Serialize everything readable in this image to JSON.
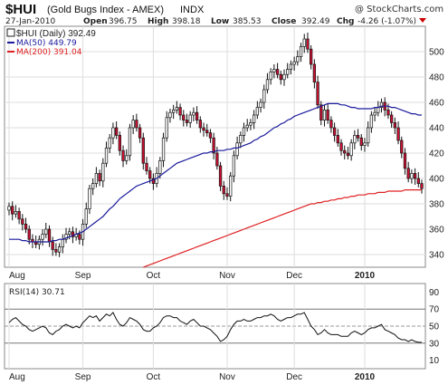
{
  "header": {
    "symbol": "$HUI",
    "name": "(Gold Bugs Index - AMEX)",
    "exchange": "INDX",
    "watermark": "@ StockCharts.com",
    "date": "27-Jan-2010",
    "open_label": "Open",
    "open": "396.75",
    "high_label": "High",
    "high": "398.18",
    "low_label": "Low",
    "low": "385.53",
    "close_label": "Close",
    "close": "392.49",
    "chg_label": "Chg",
    "chg": "-4.26 (-1.07%)",
    "chg_color": "#cc0000"
  },
  "legend": {
    "price": "$HUI (Daily) 392.49",
    "ma50": "MA(50) 449.79",
    "ma200": "MA(200) 391.04",
    "rsi": "RSI(14) 30.71"
  },
  "colors": {
    "ma50": "#1a1a9c",
    "ma200": "#e02020",
    "down_candle": "#cc1133",
    "up_candle": "#ffffff",
    "rsi": "#111111"
  },
  "chart_data": [
    {
      "type": "candlestick",
      "ylim": [
        330,
        520
      ],
      "yticks": [
        "340",
        "360",
        "380",
        "400",
        "420",
        "440",
        "460",
        "480",
        "500"
      ],
      "xticks": [
        "Aug",
        "Sep",
        "Oct",
        "Nov",
        "Dec",
        "2010"
      ],
      "close": [
        378,
        372,
        374,
        368,
        364,
        360,
        352,
        350,
        348,
        352,
        356,
        360,
        350,
        344,
        342,
        346,
        352,
        356,
        358,
        354,
        356,
        352,
        364,
        376,
        392,
        396,
        404,
        398,
        412,
        424,
        432,
        440,
        434,
        422,
        414,
        418,
        440,
        446,
        440,
        432,
        412,
        406,
        400,
        396,
        404,
        414,
        432,
        448,
        452,
        454,
        456,
        450,
        446,
        444,
        450,
        452,
        446,
        440,
        438,
        436,
        432,
        420,
        410,
        394,
        388,
        386,
        402,
        418,
        428,
        434,
        440,
        442,
        444,
        450,
        456,
        460,
        470,
        478,
        484,
        486,
        482,
        478,
        482,
        486,
        490,
        492,
        496,
        504,
        510,
        502,
        490,
        476,
        458,
        446,
        454,
        446,
        440,
        434,
        428,
        422,
        420,
        418,
        428,
        434,
        432,
        426,
        428,
        440,
        450,
        452,
        456,
        460,
        454,
        450,
        444,
        440,
        430,
        420,
        408,
        400,
        404,
        400,
        396,
        392
      ],
      "ma50": [
        352,
        352,
        352,
        352,
        351,
        351,
        350,
        350,
        350,
        350,
        350,
        350,
        350,
        351,
        351,
        352,
        352,
        353,
        354,
        355,
        356,
        357,
        358,
        360,
        362,
        364,
        366,
        368,
        370,
        373,
        376,
        378,
        381,
        384,
        386,
        388,
        390,
        392,
        394,
        395,
        396,
        397,
        398,
        399,
        400,
        402,
        404,
        406,
        408,
        410,
        412,
        413,
        414,
        415,
        416,
        417,
        418,
        419,
        420,
        420,
        421,
        421,
        422,
        422,
        422,
        423,
        423,
        424,
        424,
        425,
        426,
        427,
        428,
        430,
        431,
        433,
        434,
        436,
        438,
        440,
        441,
        443,
        444,
        446,
        447,
        449,
        450,
        451,
        452,
        453,
        454,
        455,
        456,
        457,
        458,
        459,
        459,
        459,
        459,
        458,
        458,
        457,
        456,
        456,
        455,
        455,
        455,
        455,
        455,
        456,
        456,
        457,
        457,
        457,
        456,
        456,
        455,
        454,
        453,
        452,
        451,
        451,
        450,
        450
      ],
      "ma200": [
        null,
        null,
        null,
        null,
        null,
        null,
        null,
        null,
        null,
        null,
        null,
        null,
        null,
        null,
        null,
        null,
        null,
        null,
        null,
        null,
        null,
        null,
        null,
        null,
        null,
        null,
        null,
        null,
        null,
        null,
        null,
        null,
        null,
        null,
        null,
        null,
        null,
        null,
        null,
        null,
        330,
        331,
        332,
        333,
        334,
        335,
        336,
        337,
        338,
        339,
        340,
        341,
        342,
        343,
        344,
        345,
        346,
        347,
        348,
        349,
        350,
        351,
        352,
        353,
        354,
        355,
        356,
        357,
        358,
        359,
        360,
        361,
        362,
        363,
        364,
        365,
        366,
        367,
        368,
        369,
        370,
        371,
        372,
        373,
        374,
        375,
        376,
        377,
        378,
        379,
        380,
        380,
        381,
        381,
        382,
        382,
        383,
        383,
        384,
        384,
        385,
        385,
        386,
        386,
        387,
        387,
        387,
        388,
        388,
        388,
        389,
        389,
        389,
        390,
        390,
        390,
        390,
        390,
        391,
        391,
        391,
        391,
        391,
        391
      ]
    },
    {
      "type": "line",
      "title": "RSI(14)",
      "ylim": [
        0,
        100
      ],
      "yticks": [
        "10",
        "30",
        "50",
        "70",
        "90"
      ],
      "reference_lines": [
        30,
        50,
        70
      ],
      "values": [
        54,
        58,
        60,
        56,
        52,
        50,
        46,
        44,
        46,
        48,
        50,
        48,
        42,
        40,
        44,
        46,
        50,
        52,
        50,
        48,
        50,
        48,
        54,
        58,
        62,
        60,
        62,
        56,
        60,
        64,
        62,
        66,
        58,
        52,
        50,
        54,
        60,
        58,
        56,
        52,
        46,
        44,
        44,
        48,
        50,
        54,
        60,
        62,
        62,
        60,
        60,
        56,
        54,
        52,
        56,
        58,
        54,
        50,
        50,
        48,
        46,
        42,
        38,
        32,
        34,
        38,
        46,
        52,
        56,
        56,
        58,
        56,
        56,
        58,
        60,
        60,
        62,
        62,
        64,
        62,
        58,
        56,
        58,
        60,
        60,
        62,
        64,
        64,
        66,
        58,
        50,
        46,
        40,
        42,
        46,
        42,
        40,
        40,
        40,
        38,
        38,
        38,
        42,
        44,
        42,
        40,
        42,
        46,
        48,
        48,
        50,
        52,
        46,
        44,
        42,
        40,
        36,
        34,
        34,
        32,
        34,
        32,
        31,
        31
      ]
    }
  ]
}
